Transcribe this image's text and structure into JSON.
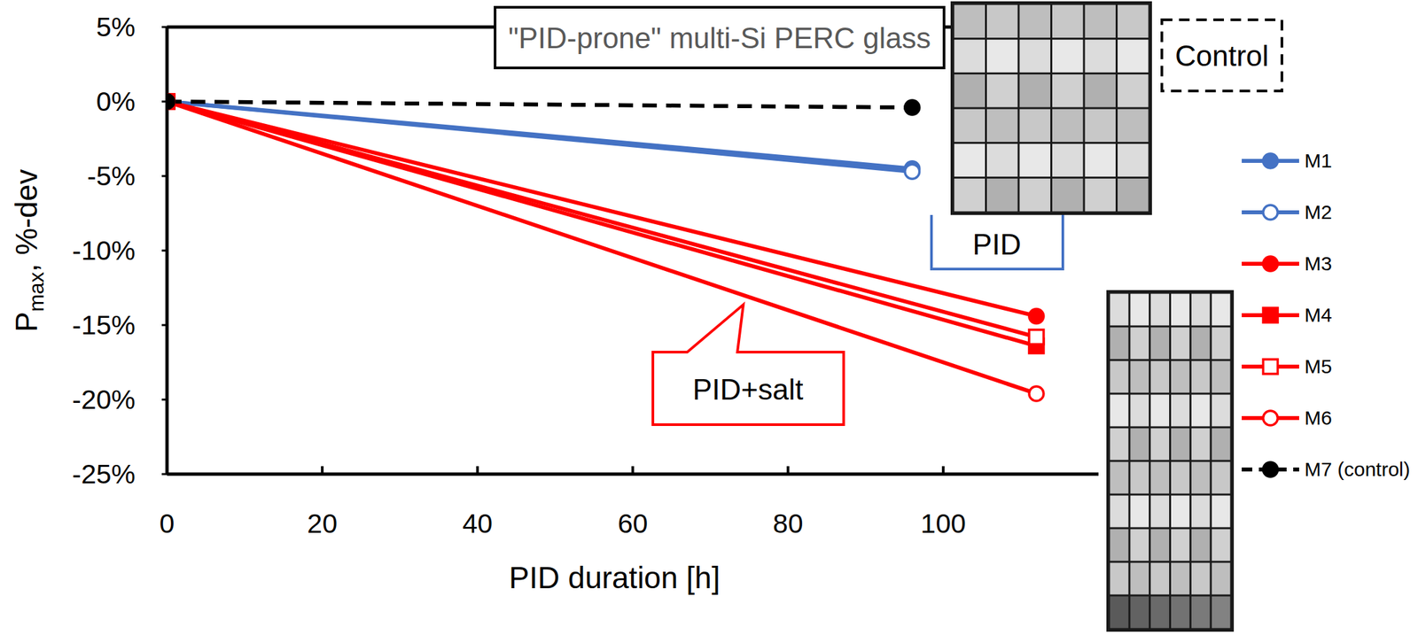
{
  "chart_data": {
    "type": "line",
    "title": "\"PID-prone\" multi-Si PERC glass",
    "xlabel": "PID duration [h]",
    "ylabel": "Pmax, %-dev",
    "xlim": [
      0,
      120
    ],
    "xticks": [
      0,
      20,
      40,
      60,
      80,
      100
    ],
    "ylim": [
      -25,
      5
    ],
    "yticks": [
      {
        "value": 5,
        "label": "5%"
      },
      {
        "value": 0,
        "label": "0%"
      },
      {
        "value": -5,
        "label": "-5%"
      },
      {
        "value": -10,
        "label": "-10%"
      },
      {
        "value": -15,
        "label": "-15%"
      },
      {
        "value": -20,
        "label": "-20%"
      },
      {
        "value": -25,
        "label": "-25%"
      }
    ],
    "legend": "right",
    "annotations": [
      "Control",
      "PID",
      "PID+salt"
    ],
    "series": [
      {
        "name": "M1",
        "color": "#4472c4",
        "marker": "circle",
        "line_style": "solid",
        "x": [
          0,
          96
        ],
        "values": [
          0,
          -4.5
        ]
      },
      {
        "name": "M2",
        "color": "#4472c4",
        "marker": "open-circle",
        "line_style": "solid",
        "x": [
          0,
          96
        ],
        "values": [
          0,
          -4.7
        ]
      },
      {
        "name": "M3",
        "color": "#ff0000",
        "marker": "circle",
        "line_style": "solid",
        "x": [
          0,
          112
        ],
        "values": [
          0,
          -14.4
        ]
      },
      {
        "name": "M4",
        "color": "#ff0000",
        "marker": "square",
        "line_style": "solid",
        "x": [
          0,
          112
        ],
        "values": [
          0,
          -16.4
        ]
      },
      {
        "name": "M5",
        "color": "#ff0000",
        "marker": "open-square",
        "line_style": "solid",
        "x": [
          0,
          112
        ],
        "values": [
          0,
          -15.8
        ]
      },
      {
        "name": "M6",
        "color": "#ff0000",
        "marker": "open-circle",
        "line_style": "solid",
        "x": [
          0,
          112
        ],
        "values": [
          0,
          -19.6
        ]
      },
      {
        "name": "M7 (control)",
        "color": "#000000",
        "marker": "circle",
        "line_style": "dashed",
        "x": [
          0,
          96
        ],
        "values": [
          0,
          -0.4
        ]
      }
    ]
  }
}
